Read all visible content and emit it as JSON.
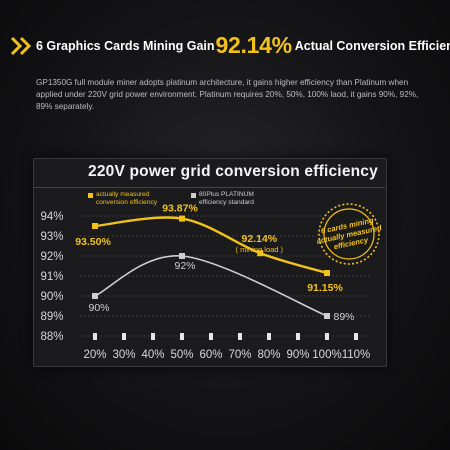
{
  "header": {
    "title_prefix": "6 Graphics Cards Mining Gain",
    "title_value": "92.14%",
    "title_suffix": "Actual Conversion Efficiency",
    "description": "GP1350G full module miner adopts platinum architecture, it gains higher efficiency than Platinum when applied under 220V grid power environment. Platinum requires 20%, 50%, 100% laod, it gains 90%, 92%, 89% separately."
  },
  "colors": {
    "accent": "#f2c21b",
    "measured": "#f2c21b",
    "platinum": "#cfcfcf"
  },
  "chart_data": {
    "type": "line",
    "title": "220V power grid conversion efficiency",
    "categories": [
      "20%",
      "30%",
      "40%",
      "50%",
      "60%",
      "70%",
      "80%",
      "90%",
      "100%",
      "110%"
    ],
    "y_ticks": [
      "88%",
      "89%",
      "90%",
      "91%",
      "92%",
      "93%",
      "94%"
    ],
    "ylim": [
      88,
      94.4
    ],
    "series": [
      {
        "name": "actually measured conversion efficiency",
        "color": "#f2c21b",
        "x": [
          20,
          50,
          77,
          100
        ],
        "values": [
          93.5,
          93.87,
          92.14,
          91.15
        ],
        "labels": [
          "93.50%",
          "93.87%",
          "92.14%",
          "91.15%"
        ],
        "sub_labels": [
          "",
          "",
          "( mining load )",
          ""
        ]
      },
      {
        "name": "80Plus PLATINUM efficiency standard",
        "color": "#cfcfcf",
        "x": [
          20,
          50,
          100
        ],
        "values": [
          90,
          92,
          89
        ],
        "labels": [
          "90%",
          "92%",
          "89%"
        ],
        "sub_labels": [
          "",
          "",
          ""
        ]
      }
    ],
    "legend": [
      {
        "line1": "actually measured",
        "line2": "conversion efficiency"
      },
      {
        "line1": "80Plus PLATINUM",
        "line2": "efficiency standard"
      }
    ],
    "badge": [
      "6 cards mining",
      "actually measured",
      "efficiency"
    ]
  }
}
